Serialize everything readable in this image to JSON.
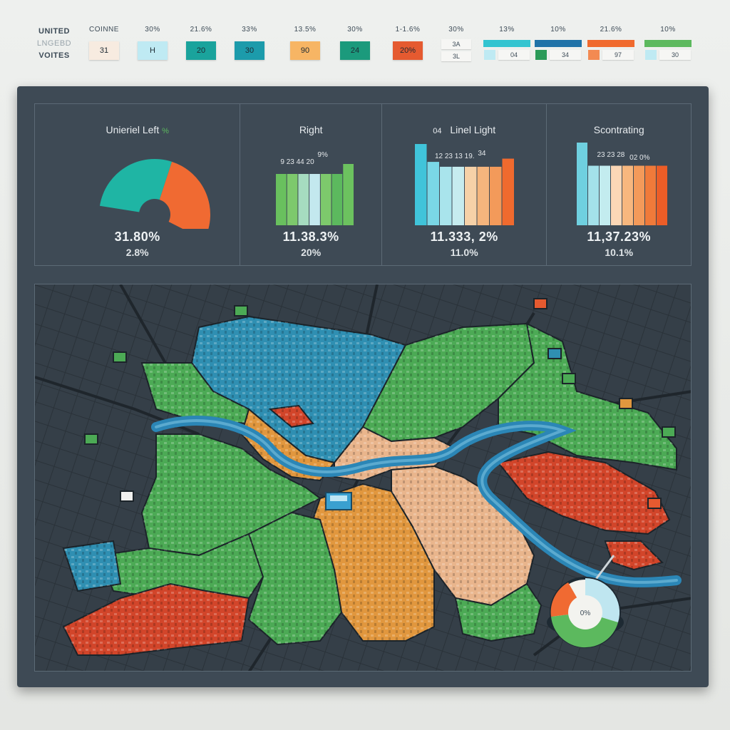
{
  "legend": {
    "title_lines": [
      "UNITED",
      "LNGEBD",
      "VOITES"
    ],
    "columns": [
      {
        "header": "COINNE",
        "chip": "31",
        "color": "#f7ebe0"
      },
      {
        "header": "30%",
        "chip": "H",
        "color": "#bfeaf3"
      },
      {
        "header": "21.6%",
        "chip": "20",
        "color": "#1aa39c"
      },
      {
        "header": "33%",
        "chip": "30",
        "color": "#1c9bab"
      },
      {
        "header": "13.5%",
        "chip": "90",
        "color": "#f7b564"
      },
      {
        "header": "30%",
        "chip": "24",
        "color": "#1b9a7c"
      },
      {
        "header": "1-1.6%",
        "chip": "20%",
        "color": "#e55a30"
      },
      {
        "header": "30%",
        "stack": [
          "3A",
          "3L"
        ],
        "color": "#f6f6f4"
      }
    ],
    "bar_columns": [
      {
        "header": "13%",
        "bar_color": "#33c4d0",
        "mini_color": "#bfeaf3",
        "num": "04"
      },
      {
        "header": "10%",
        "bar_color": "#1f72a8",
        "mini_color": "#2a9a58",
        "num": "34"
      },
      {
        "header": "21.6%",
        "bar_color": "#f06a2e",
        "mini_color": "#f38a52",
        "num": "97"
      },
      {
        "header": "10%",
        "bar_color": "#5cb95e",
        "mini_color": "#bfeaf3",
        "num": "30"
      }
    ]
  },
  "panels": [
    {
      "title": "Unieriel Left",
      "title_extra": "% ",
      "value1": "31.80%",
      "value2": "2.8%",
      "chart_type": "donut",
      "slices": [
        {
          "color": "#1fb5a4",
          "value": 50
        },
        {
          "color": "#f06a32",
          "value": 50
        }
      ]
    },
    {
      "title": "Right",
      "value1": "11.38.3%",
      "value2": "20%",
      "bar_label": "9 23 44 20",
      "bar_label_2": "9%",
      "chart_type": "bars",
      "bars": [
        {
          "value": 0.72,
          "color": "#69c05e"
        },
        {
          "value": 0.72,
          "color": "#7dc96c"
        },
        {
          "value": 0.72,
          "color": "#a6dcc0"
        },
        {
          "value": 0.72,
          "color": "#c3e8ee"
        },
        {
          "value": 0.72,
          "color": "#7dc96c"
        },
        {
          "value": 0.72,
          "color": "#5cb95e"
        },
        {
          "value": 0.86,
          "color": "#6cc25f"
        }
      ]
    },
    {
      "title": "Linel Light",
      "title_prefix": "04",
      "value1": "11.333, 2%",
      "value2": "11.0%",
      "bar_label": "12 23 13 19.",
      "bar_label_2": "34",
      "chart_type": "bars",
      "bars": [
        {
          "value": 1.0,
          "color": "#40c4da"
        },
        {
          "value": 0.78,
          "color": "#7ad7e6"
        },
        {
          "value": 0.72,
          "color": "#a9e4ec"
        },
        {
          "value": 0.72,
          "color": "#c6ecef"
        },
        {
          "value": 0.72,
          "color": "#f6d1a8"
        },
        {
          "value": 0.72,
          "color": "#f5b57d"
        },
        {
          "value": 0.72,
          "color": "#f39a5a"
        },
        {
          "value": 0.82,
          "color": "#f06a2e"
        }
      ]
    },
    {
      "title": "Scontrating",
      "value1": "11,37.23%",
      "value2": "10.1%",
      "bar_label": "23 23 28",
      "bar_label_2": "02 0%",
      "chart_type": "bars",
      "bars": [
        {
          "value": 1.0,
          "color": "#6fd0e0"
        },
        {
          "value": 0.72,
          "color": "#a4e1ea"
        },
        {
          "value": 0.72,
          "color": "#c3ecef"
        },
        {
          "value": 0.72,
          "color": "#fbd7b6"
        },
        {
          "value": 0.72,
          "color": "#f7b77e"
        },
        {
          "value": 0.72,
          "color": "#f39a5a"
        },
        {
          "value": 0.72,
          "color": "#f07a3a"
        },
        {
          "value": 0.72,
          "color": "#ec5d27"
        }
      ]
    }
  ],
  "map": {
    "district_colors": {
      "blue": "#2f8fb2",
      "green": "#4caa55",
      "orange": "#e1973e",
      "red": "#d2452a",
      "peach": "#e9b58c",
      "dark_block": "#2d353d",
      "river": "#2b86b6",
      "road": "#1f262c"
    },
    "marker_label": "0%"
  }
}
